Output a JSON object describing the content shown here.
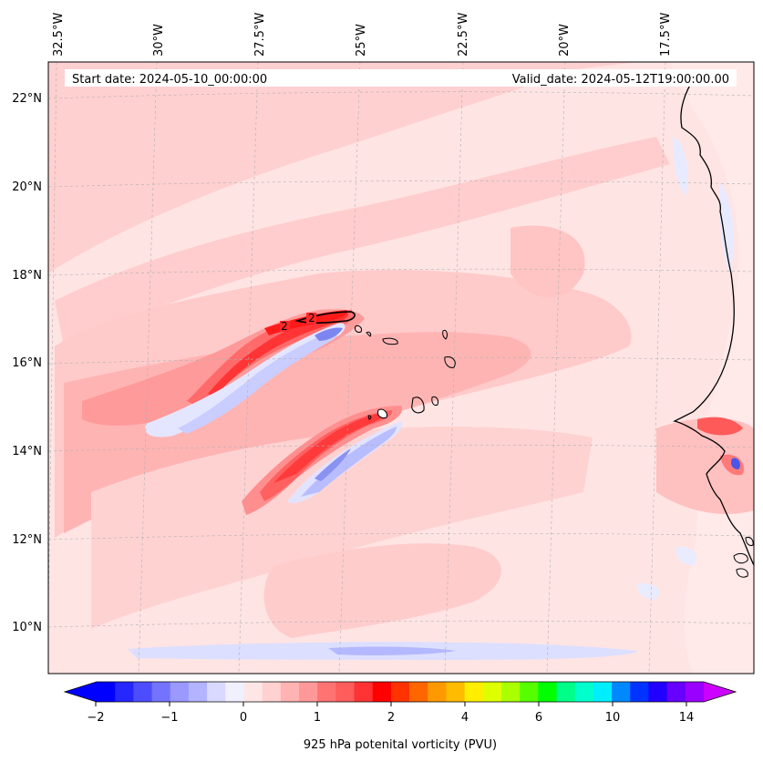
{
  "header": {
    "start_date": "Start date: 2024-05-10_00:00:00",
    "valid_date": "Valid_date: 2024-05-12T19:00:00.00"
  },
  "longitude_labels": [
    "32.5°W",
    "30°W",
    "27.5°W",
    "25°W",
    "22.5°W",
    "20°W",
    "17.5°W"
  ],
  "latitude_labels": [
    "22°N",
    "20°N",
    "18°N",
    "16°N",
    "14°N",
    "12°N",
    "10°N"
  ],
  "contour_labels": [
    "2",
    "2"
  ],
  "colorbar": {
    "title": "925 hPa potenital vorticity (PVU)",
    "tick_labels": [
      "−2",
      "−1",
      "0",
      "1",
      "2",
      "4",
      "6",
      "10",
      "14"
    ],
    "colors": [
      "#0000ff",
      "#2626ff",
      "#4d4dff",
      "#7373ff",
      "#9999ff",
      "#b3b3ff",
      "#d9d9ff",
      "#f0f0ff",
      "#ffe6e6",
      "#ffd1d1",
      "#ffb3b3",
      "#ff9999",
      "#ff7373",
      "#ff5c5c",
      "#ff3333",
      "#ff0000",
      "#ff3300",
      "#ff6600",
      "#ff9900",
      "#ffbb00",
      "#ffee00",
      "#ddff00",
      "#aaff00",
      "#55ff00",
      "#00ff00",
      "#00ff88",
      "#00ffcc",
      "#00eeff",
      "#0088ff",
      "#0033ff",
      "#2200ff",
      "#6600ff",
      "#9900ff"
    ],
    "extend_min_color": "#0000ff",
    "extend_max_color": "#cc00ff"
  },
  "field_colors": {
    "neg_weak": "#eceeff",
    "neg_mid": "#c9cdff",
    "neg_strong": "#7d86f0",
    "pos_bg": "#ffe4e4",
    "pos_1": "#ffcccc",
    "pos_2": "#ffb0b0",
    "pos_3": "#ff8a8a",
    "pos_4": "#ff5a5a",
    "pos_5": "#ff2a2a"
  }
}
